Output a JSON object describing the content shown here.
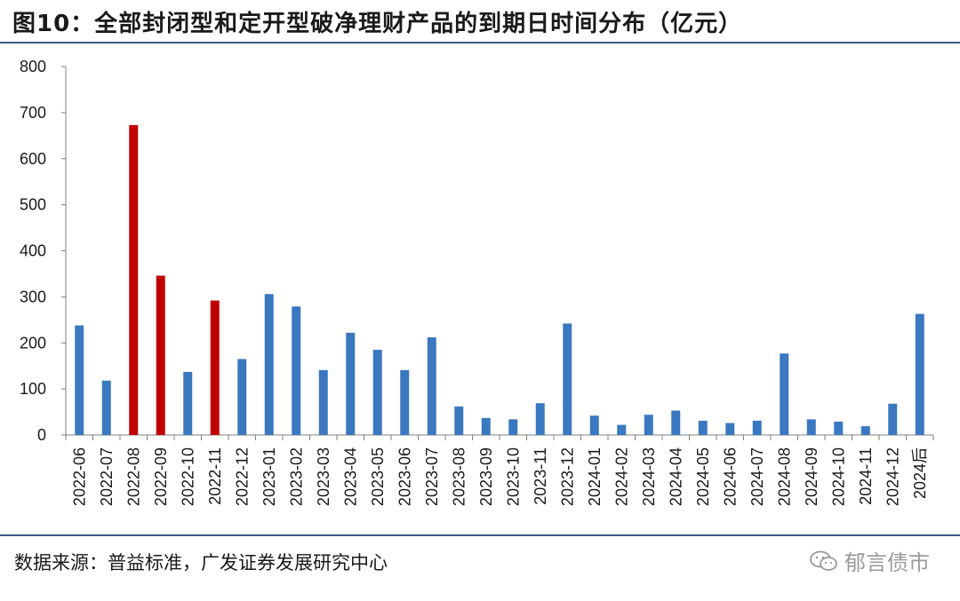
{
  "title": "图10：全部封闭型和定开型破净理财产品的到期日时间分布（亿元）",
  "source": "数据来源：普益标准，广发证券发展研究中心",
  "watermark": "郁言债市",
  "colors": {
    "blue": "#3a78c0",
    "red": "#c00000"
  },
  "chart_data": {
    "type": "bar",
    "title": "",
    "xlabel": "",
    "ylabel": "",
    "ylim": [
      0,
      800
    ],
    "yticks": [
      0,
      100,
      200,
      300,
      400,
      500,
      600,
      700,
      800
    ],
    "grid": false,
    "categories": [
      "2022-06",
      "2022-07",
      "2022-08",
      "2022-09",
      "2022-10",
      "2022-11",
      "2022-12",
      "2023-01",
      "2023-02",
      "2023-03",
      "2023-04",
      "2023-05",
      "2023-06",
      "2023-07",
      "2023-08",
      "2023-09",
      "2023-10",
      "2023-11",
      "2023-12",
      "2024-01",
      "2024-02",
      "2024-03",
      "2024-04",
      "2024-05",
      "2024-06",
      "2024-07",
      "2024-08",
      "2024-09",
      "2024-10",
      "2024-11",
      "2024-12",
      "2024后"
    ],
    "values": [
      238,
      118,
      673,
      346,
      137,
      292,
      165,
      306,
      279,
      141,
      222,
      185,
      141,
      212,
      62,
      37,
      34,
      69,
      242,
      42,
      22,
      44,
      53,
      31,
      26,
      31,
      177,
      34,
      29,
      19,
      68,
      263
    ],
    "highlight": [
      false,
      false,
      true,
      true,
      false,
      true,
      false,
      false,
      false,
      false,
      false,
      false,
      false,
      false,
      false,
      false,
      false,
      false,
      false,
      false,
      false,
      false,
      false,
      false,
      false,
      false,
      false,
      false,
      false,
      false,
      false,
      false
    ]
  }
}
